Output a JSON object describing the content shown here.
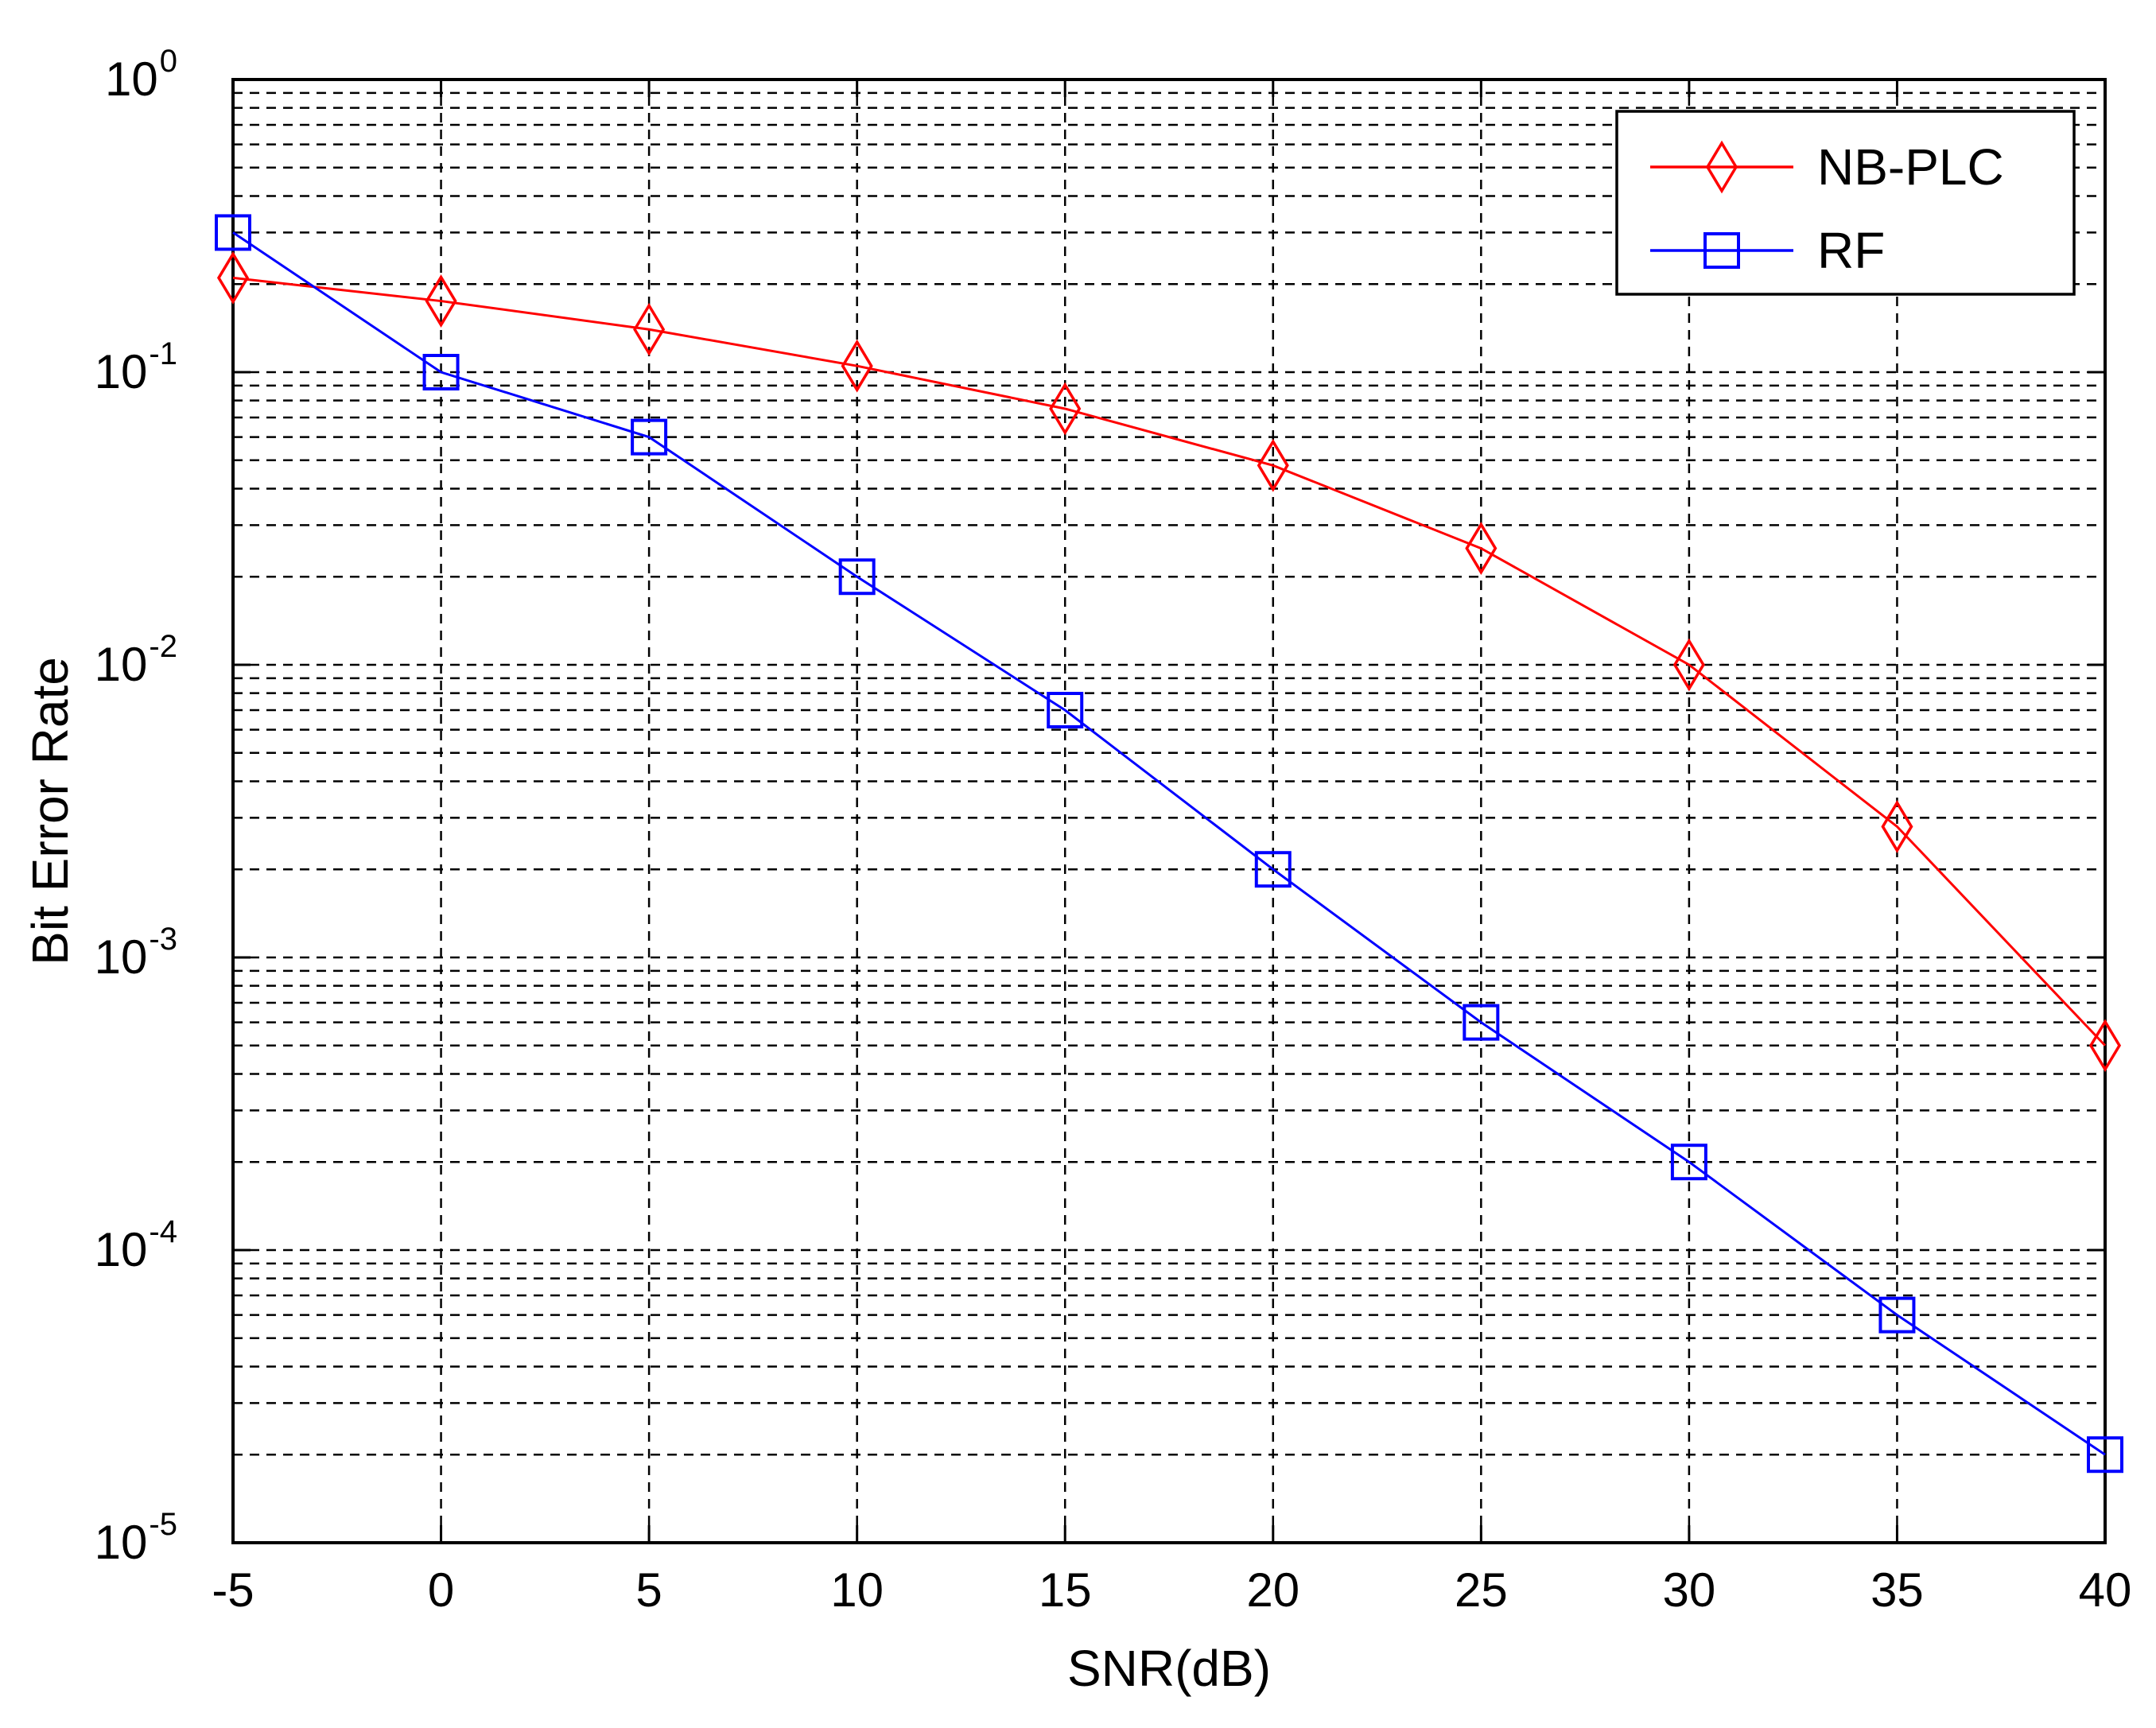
{
  "chart_data": {
    "type": "line",
    "xlabel": "SNR(dB)",
    "ylabel": "Bit Error Rate",
    "xlim": [
      -5,
      40
    ],
    "ylim": [
      1e-05,
      1
    ],
    "yscale": "log",
    "grid": true,
    "legend_position": "top-right",
    "x": [
      -5,
      0,
      5,
      10,
      15,
      20,
      25,
      30,
      35,
      40
    ],
    "x_tick_labels": [
      "-5",
      "0",
      "5",
      "10",
      "15",
      "20",
      "25",
      "30",
      "35",
      "40"
    ],
    "y_ticks": [
      {
        "value": 1,
        "base": "10",
        "exponent": "0"
      },
      {
        "value": 0.1,
        "base": "10",
        "exponent": "-1"
      },
      {
        "value": 0.01,
        "base": "10",
        "exponent": "-2"
      },
      {
        "value": 0.001,
        "base": "10",
        "exponent": "-3"
      },
      {
        "value": 0.0001,
        "base": "10",
        "exponent": "-4"
      },
      {
        "value": 1e-05,
        "base": "10",
        "exponent": "-5"
      }
    ],
    "series": [
      {
        "name": "NB-PLC",
        "color": "#ff0000",
        "marker": "diamond",
        "values": [
          0.21,
          0.175,
          0.14,
          0.105,
          0.075,
          0.048,
          0.025,
          0.01,
          0.0028,
          0.0005
        ]
      },
      {
        "name": "RF",
        "color": "#0000ff",
        "marker": "square",
        "values": [
          0.3,
          0.1,
          0.06,
          0.02,
          0.007,
          0.002,
          0.0006,
          0.0002,
          6e-05,
          2e-05
        ]
      }
    ]
  }
}
